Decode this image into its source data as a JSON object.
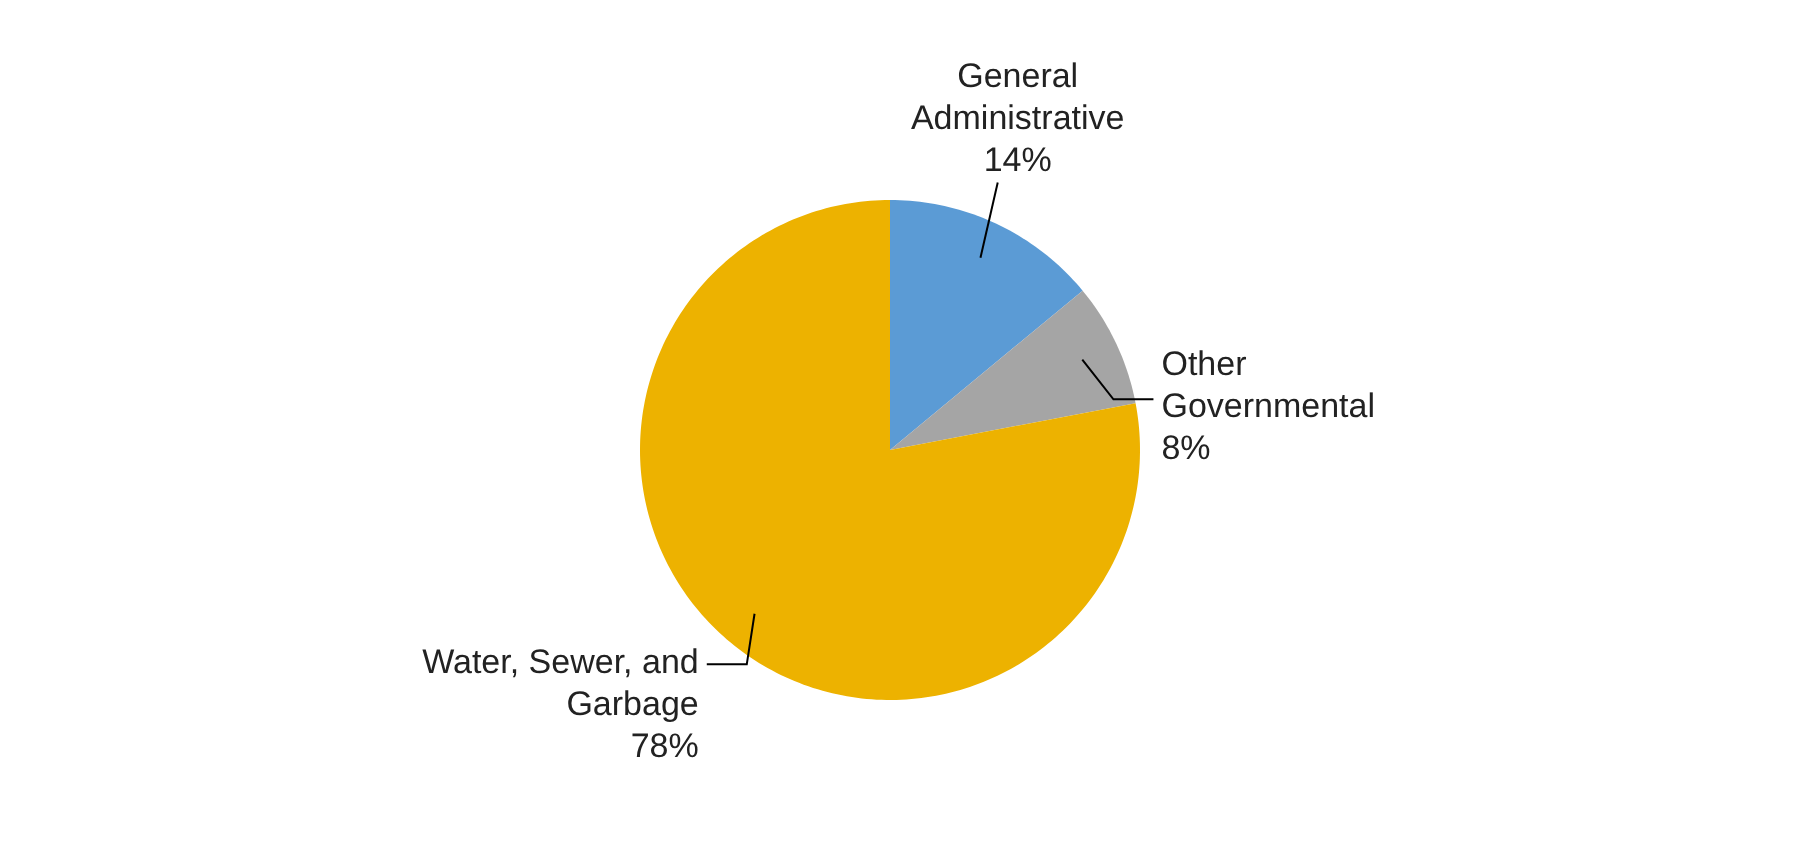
{
  "chart_data": {
    "type": "pie",
    "categories": [
      "General Administrative",
      "Other Governmental",
      "Water, Sewer, and Garbage"
    ],
    "values": [
      14,
      8,
      78
    ],
    "colors": [
      "#5b9bd5",
      "#a5a5a5",
      "#edb200"
    ],
    "value_labels": [
      "14%",
      "8%",
      "78%"
    ]
  }
}
